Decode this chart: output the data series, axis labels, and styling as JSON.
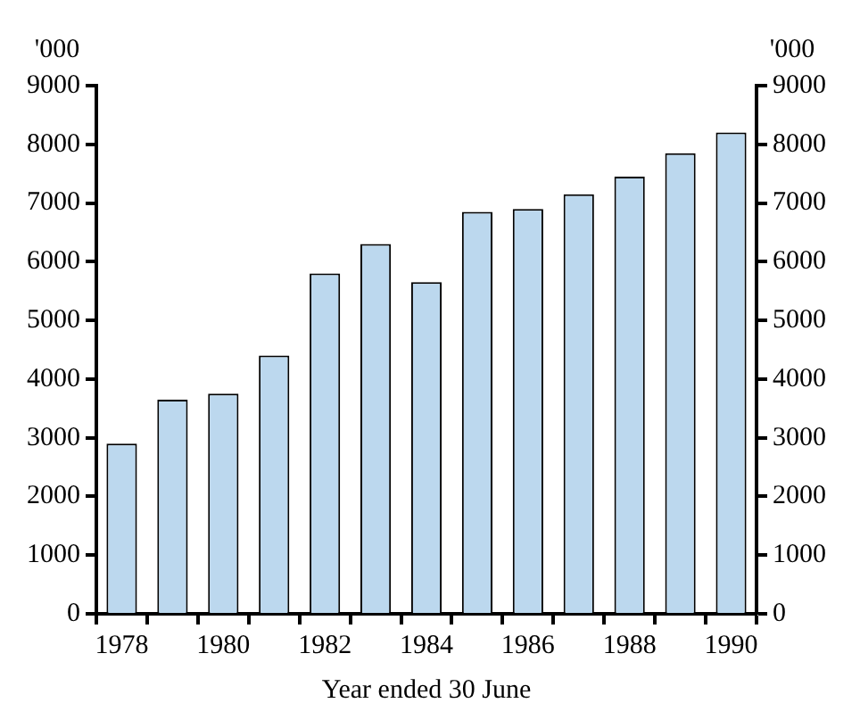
{
  "chart_data": {
    "type": "bar",
    "xlabel": "Year ended 30 June",
    "ylabel": "'000",
    "y2label": "'000",
    "categories": [
      "1978",
      null,
      "1980",
      null,
      "1982",
      null,
      "1984",
      null,
      "1986",
      null,
      "1988",
      null,
      "1990"
    ],
    "series": [
      {
        "color": "#bcd8ee",
        "values": [
          2900,
          3650,
          3750,
          4400,
          5800,
          6300,
          5650,
          6850,
          6900,
          7150,
          7450,
          7850,
          8200
        ]
      }
    ],
    "ylim": [
      0,
      9000
    ],
    "yticks": [
      0,
      1000,
      2000,
      3000,
      4000,
      5000,
      6000,
      7000,
      8000,
      9000
    ],
    "y2lim": [
      0,
      9000
    ],
    "y2ticks": [
      0,
      1000,
      2000,
      3000,
      4000,
      5000,
      6000,
      7000,
      8000,
      9000
    ],
    "grid": false,
    "legend": false
  }
}
